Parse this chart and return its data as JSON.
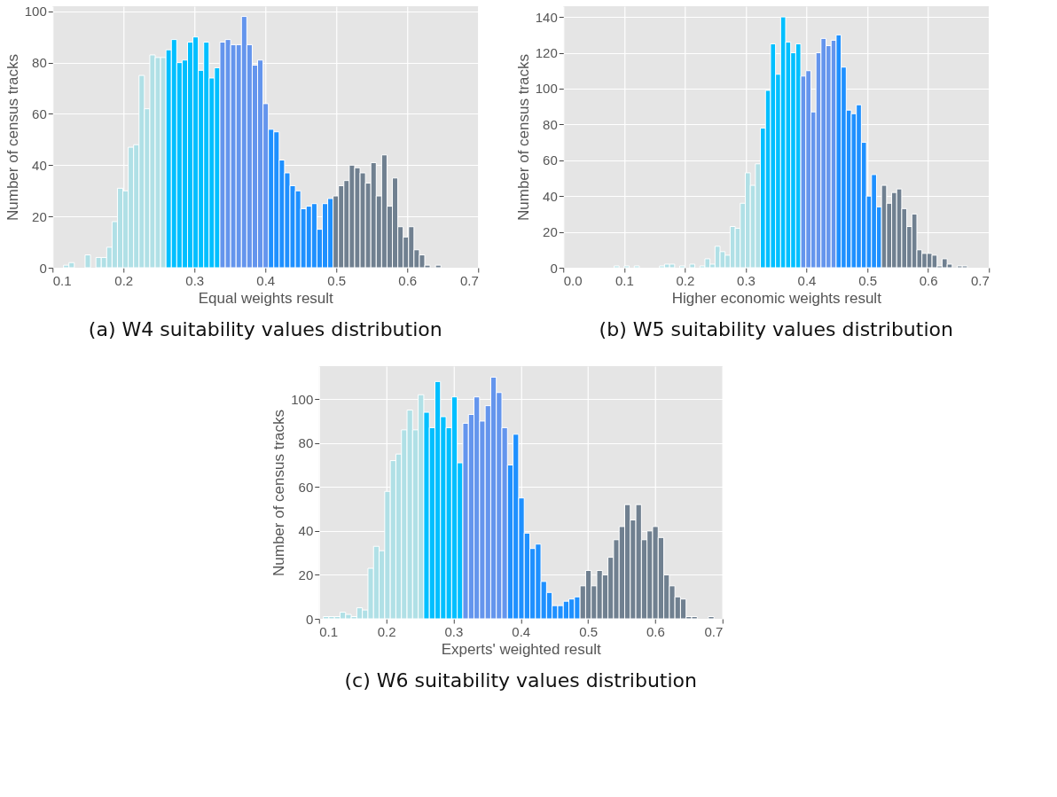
{
  "chart_data": [
    {
      "type": "histogram",
      "title": "(a)  W4 suitability values distribution",
      "xlabel": "Equal weights result",
      "ylabel": "Number of census tracks",
      "bins": [
        0.1155,
        0.1231,
        0.1307,
        0.1383,
        0.1459,
        0.1535,
        0.1611,
        0.1687,
        0.1763,
        0.1839,
        0.1915,
        0.1991,
        0.2067,
        0.2143,
        0.2219,
        0.2295,
        0.2371,
        0.2447,
        0.2523,
        0.2599,
        0.2675,
        0.2751,
        0.2827,
        0.2903,
        0.2979,
        0.3055,
        0.3131,
        0.3207,
        0.3283,
        0.3359,
        0.3435,
        0.3511,
        0.3587,
        0.3663,
        0.3739,
        0.3815,
        0.3891,
        0.3967,
        0.4043,
        0.4119,
        0.4195,
        0.4271,
        0.4347,
        0.4423,
        0.4499,
        0.4575,
        0.4651,
        0.4727,
        0.4803,
        0.4879,
        0.4955,
        0.5031,
        0.5107,
        0.5183,
        0.5259,
        0.5335,
        0.5411,
        0.5487,
        0.5563,
        0.5639,
        0.5715,
        0.5791,
        0.5867,
        0.5943,
        0.6019,
        0.6095,
        0.6171,
        0.6247,
        0.6323,
        0.6399,
        0.6475
      ],
      "values": [
        1,
        2,
        0,
        0,
        5,
        0,
        4,
        4,
        8,
        18,
        31,
        30,
        47,
        48,
        75,
        62,
        83,
        82,
        82,
        85,
        89,
        80,
        81,
        88,
        90,
        77,
        88,
        74,
        78,
        88,
        89,
        87,
        87,
        98,
        87,
        79,
        81,
        64,
        54,
        53,
        42,
        37,
        32,
        30,
        23,
        24,
        25,
        15,
        25,
        27,
        28,
        32,
        34,
        40,
        39,
        37,
        33,
        41,
        28,
        44,
        24,
        35,
        16,
        12,
        16,
        7,
        5,
        1,
        0,
        1
      ],
      "colors": [
        "#b0e0e6",
        "#b0e0e6",
        "#b0e0e6",
        "#b0e0e6",
        "#b0e0e6",
        "#b0e0e6",
        "#b0e0e6",
        "#b0e0e6",
        "#b0e0e6",
        "#b0e0e6",
        "#b0e0e6",
        "#b0e0e6",
        "#b0e0e6",
        "#b0e0e6",
        "#b0e0e6",
        "#b0e0e6",
        "#b0e0e6",
        "#b0e0e6",
        "#b0e0e6",
        "#00bfff",
        "#00bfff",
        "#00bfff",
        "#00bfff",
        "#00bfff",
        "#00bfff",
        "#00bfff",
        "#00bfff",
        "#00bfff",
        "#00bfff",
        "#6495ed",
        "#6495ed",
        "#6495ed",
        "#6495ed",
        "#6495ed",
        "#6495ed",
        "#6495ed",
        "#6495ed",
        "#6495ed",
        "#1e90ff",
        "#1e90ff",
        "#1e90ff",
        "#1e90ff",
        "#1e90ff",
        "#1e90ff",
        "#1e90ff",
        "#1e90ff",
        "#1e90ff",
        "#1e90ff",
        "#1e90ff",
        "#1e90ff",
        "#708090",
        "#708090",
        "#708090",
        "#708090",
        "#708090",
        "#708090",
        "#708090",
        "#708090",
        "#708090",
        "#708090",
        "#708090",
        "#708090",
        "#708090",
        "#708090",
        "#708090",
        "#708090",
        "#708090",
        "#708090",
        "#708090",
        "#708090"
      ],
      "xlim": [
        0.1,
        0.7
      ],
      "ylim": [
        0,
        102
      ],
      "xticks": [
        0.1,
        0.2,
        0.3,
        0.4,
        0.5,
        0.6,
        0.7
      ],
      "yticks": [
        0,
        20,
        40,
        60,
        80,
        100
      ],
      "grid": true
    },
    {
      "type": "histogram",
      "title": "(b) W5 suitability values distribution",
      "xlabel": "Higher economic weights result",
      "ylabel": "Number of census tracks",
      "bins": [
        0.0835,
        0.0918,
        0.1001,
        0.1084,
        0.1167,
        0.125,
        0.1333,
        0.1416,
        0.1499,
        0.1582,
        0.1665,
        0.1748,
        0.1831,
        0.1914,
        0.1997,
        0.208,
        0.2163,
        0.2246,
        0.2329,
        0.2412,
        0.2495,
        0.2578,
        0.2661,
        0.2744,
        0.2827,
        0.291,
        0.2993,
        0.3076,
        0.3159,
        0.3242,
        0.3325,
        0.3408,
        0.3491,
        0.3574,
        0.3657,
        0.374,
        0.3823,
        0.3906,
        0.3989,
        0.4072,
        0.4155,
        0.4238,
        0.4321,
        0.4404,
        0.4487,
        0.457,
        0.4653,
        0.4736,
        0.4819,
        0.4902,
        0.4985,
        0.5068,
        0.5151,
        0.5234,
        0.5317,
        0.54,
        0.5483,
        0.5566,
        0.5649,
        0.5732,
        0.5815,
        0.5898,
        0.5981,
        0.6064,
        0.6147,
        0.623,
        0.6313,
        0.6396,
        0.6479,
        0.6562,
        0.6645
      ],
      "values": [
        1,
        0,
        1,
        0,
        1,
        0,
        0,
        0,
        0,
        1,
        2,
        2,
        0,
        1,
        0,
        2,
        0,
        1,
        5,
        2,
        12,
        9,
        7,
        23,
        22,
        36,
        53,
        46,
        58,
        78,
        99,
        125,
        108,
        140,
        126,
        120,
        125,
        107,
        110,
        87,
        120,
        128,
        124,
        127,
        130,
        112,
        88,
        86,
        91,
        70,
        40,
        52,
        34,
        46,
        36,
        42,
        44,
        33,
        23,
        30,
        10,
        8,
        8,
        7,
        1,
        5,
        2,
        0,
        1,
        1
      ],
      "colors": [
        "#b0e0e6",
        "#b0e0e6",
        "#b0e0e6",
        "#b0e0e6",
        "#b0e0e6",
        "#b0e0e6",
        "#b0e0e6",
        "#b0e0e6",
        "#b0e0e6",
        "#b0e0e6",
        "#b0e0e6",
        "#b0e0e6",
        "#b0e0e6",
        "#b0e0e6",
        "#b0e0e6",
        "#b0e0e6",
        "#b0e0e6",
        "#b0e0e6",
        "#b0e0e6",
        "#b0e0e6",
        "#b0e0e6",
        "#b0e0e6",
        "#b0e0e6",
        "#b0e0e6",
        "#b0e0e6",
        "#b0e0e6",
        "#b0e0e6",
        "#b0e0e6",
        "#b0e0e6",
        "#00bfff",
        "#00bfff",
        "#00bfff",
        "#00bfff",
        "#00bfff",
        "#00bfff",
        "#00bfff",
        "#00bfff",
        "#6495ed",
        "#6495ed",
        "#6495ed",
        "#6495ed",
        "#6495ed",
        "#6495ed",
        "#6495ed",
        "#1e90ff",
        "#1e90ff",
        "#1e90ff",
        "#1e90ff",
        "#1e90ff",
        "#1e90ff",
        "#1e90ff",
        "#1e90ff",
        "#1e90ff",
        "#708090",
        "#708090",
        "#708090",
        "#708090",
        "#708090",
        "#708090",
        "#708090",
        "#708090",
        "#708090",
        "#708090",
        "#708090",
        "#708090",
        "#708090",
        "#708090",
        "#708090",
        "#708090",
        "#708090"
      ],
      "xlim": [
        0,
        0.7
      ],
      "ylim": [
        0,
        146
      ],
      "xticks": [
        {
          "value": 0,
          "label": "0.0"
        },
        0.1,
        0.2,
        0.3,
        0.4,
        0.5,
        0.6,
        0.7
      ],
      "yticks": [
        0,
        20,
        40,
        60,
        80,
        100,
        120,
        140
      ],
      "grid": true
    },
    {
      "type": "histogram",
      "title": "(c) W6 suitability values distribution",
      "xlabel": "Experts' weighted result",
      "ylabel": "Number of census tracks",
      "bins": [
        0.1064,
        0.1147,
        0.123,
        0.1313,
        0.1396,
        0.1479,
        0.1562,
        0.1645,
        0.1728,
        0.1811,
        0.1894,
        0.1977,
        0.206,
        0.2143,
        0.2226,
        0.2309,
        0.2392,
        0.2475,
        0.2558,
        0.2641,
        0.2724,
        0.2807,
        0.289,
        0.2973,
        0.3056,
        0.3139,
        0.3222,
        0.3305,
        0.3388,
        0.3471,
        0.3554,
        0.3637,
        0.372,
        0.3803,
        0.3886,
        0.3969,
        0.4052,
        0.4135,
        0.4218,
        0.4301,
        0.4384,
        0.4467,
        0.455,
        0.4633,
        0.4716,
        0.4799,
        0.4882,
        0.4965,
        0.5048,
        0.5131,
        0.5214,
        0.5297,
        0.538,
        0.5463,
        0.5546,
        0.5629,
        0.5712,
        0.5795,
        0.5878,
        0.5961,
        0.6044,
        0.6127,
        0.621,
        0.6293,
        0.6376,
        0.6459,
        0.6542,
        0.6625,
        0.6708,
        0.6791,
        0.6874
      ],
      "values": [
        1,
        1,
        1,
        3,
        2,
        1,
        5,
        4,
        23,
        33,
        31,
        58,
        72,
        75,
        86,
        95,
        86,
        102,
        94,
        87,
        108,
        92,
        87,
        101,
        71,
        89,
        93,
        101,
        90,
        97,
        110,
        103,
        87,
        70,
        84,
        55,
        39,
        32,
        34,
        17,
        12,
        6,
        6,
        8,
        9,
        10,
        15,
        22,
        15,
        22,
        20,
        28,
        36,
        42,
        52,
        45,
        52,
        36,
        40,
        42,
        37,
        20,
        15,
        10,
        9,
        1,
        1,
        0,
        0,
        1
      ],
      "colors": [
        "#b0e0e6",
        "#b0e0e6",
        "#b0e0e6",
        "#b0e0e6",
        "#b0e0e6",
        "#b0e0e6",
        "#b0e0e6",
        "#b0e0e6",
        "#b0e0e6",
        "#b0e0e6",
        "#b0e0e6",
        "#b0e0e6",
        "#b0e0e6",
        "#b0e0e6",
        "#b0e0e6",
        "#b0e0e6",
        "#b0e0e6",
        "#b0e0e6",
        "#00bfff",
        "#00bfff",
        "#00bfff",
        "#00bfff",
        "#00bfff",
        "#00bfff",
        "#00bfff",
        "#6495ed",
        "#6495ed",
        "#6495ed",
        "#6495ed",
        "#6495ed",
        "#6495ed",
        "#6495ed",
        "#6495ed",
        "#1e90ff",
        "#1e90ff",
        "#1e90ff",
        "#1e90ff",
        "#1e90ff",
        "#1e90ff",
        "#1e90ff",
        "#1e90ff",
        "#1e90ff",
        "#1e90ff",
        "#1e90ff",
        "#1e90ff",
        "#1e90ff",
        "#708090",
        "#708090",
        "#708090",
        "#708090",
        "#708090",
        "#708090",
        "#708090",
        "#708090",
        "#708090",
        "#708090",
        "#708090",
        "#708090",
        "#708090",
        "#708090",
        "#708090",
        "#708090",
        "#708090",
        "#708090",
        "#708090",
        "#708090",
        "#708090",
        "#708090",
        "#708090",
        "#708090"
      ],
      "xlim": [
        0.1,
        0.7
      ],
      "ylim": [
        0,
        115
      ],
      "xticks": [
        0.1,
        0.2,
        0.3,
        0.4,
        0.5,
        0.6,
        0.7
      ],
      "yticks": [
        0,
        20,
        40,
        60,
        80,
        100
      ],
      "grid": true
    }
  ]
}
